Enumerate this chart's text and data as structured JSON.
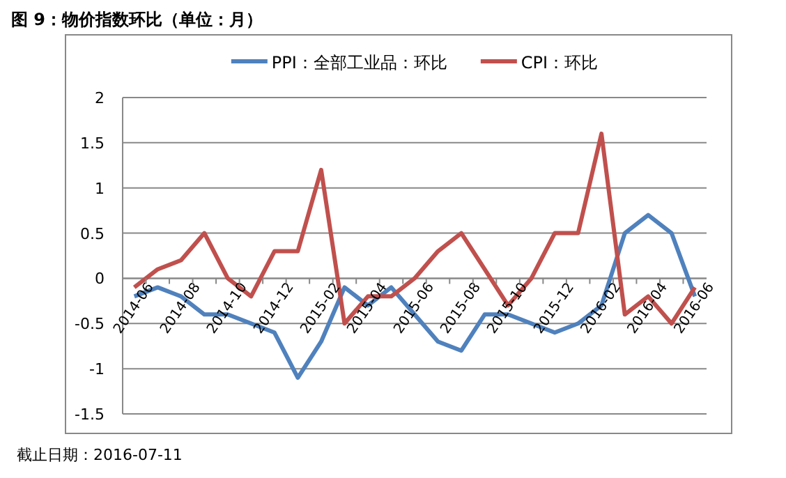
{
  "chart_data": {
    "type": "line",
    "title": "图 9：物价指数环比（单位：月）",
    "categories": [
      "2014-06",
      null,
      "2014-08",
      null,
      "2014-10",
      null,
      "2014-12",
      null,
      "2015-02",
      null,
      "2015-04",
      null,
      "2015-06",
      null,
      "2015-08",
      null,
      "2015-10",
      null,
      "2015-12",
      null,
      "2016-02",
      null,
      "2016-04",
      null,
      "2016-06"
    ],
    "series": [
      {
        "name": "PPI：全部工业品：环比",
        "color": "#4f81bd",
        "values": [
          -0.2,
          -0.1,
          -0.2,
          -0.4,
          -0.4,
          -0.5,
          -0.6,
          -1.1,
          -0.7,
          -0.1,
          -0.3,
          -0.1,
          -0.4,
          -0.7,
          -0.8,
          -0.4,
          -0.4,
          -0.5,
          -0.6,
          -0.5,
          -0.3,
          0.5,
          0.7,
          0.5,
          -0.2
        ]
      },
      {
        "name": "CPI：环比",
        "color": "#c0504d",
        "values": [
          -0.1,
          0.1,
          0.2,
          0.5,
          0,
          -0.2,
          0.3,
          0.3,
          1.2,
          -0.5,
          -0.2,
          -0.2,
          0,
          0.3,
          0.5,
          0.1,
          -0.3,
          0,
          0.5,
          0.5,
          1.6,
          -0.4,
          -0.2,
          -0.5,
          -0.1
        ]
      }
    ],
    "ylim": [
      -1.5,
      2
    ],
    "yticks": [
      -1.5,
      -1,
      -0.5,
      0,
      0.5,
      1,
      1.5,
      2
    ],
    "grid": "y",
    "legend": "top",
    "marker": "none",
    "line_style": "solid",
    "annotations": [
      "截止日期：2016-07-11"
    ]
  }
}
